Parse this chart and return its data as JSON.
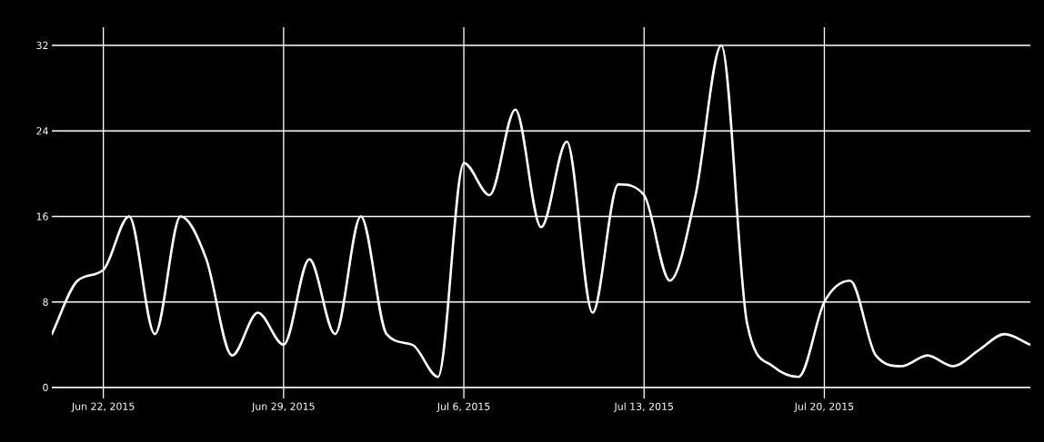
{
  "chart_data": {
    "type": "line",
    "x": [
      "2015-06-20",
      "2015-06-21",
      "2015-06-22",
      "2015-06-23",
      "2015-06-24",
      "2015-06-25",
      "2015-06-26",
      "2015-06-27",
      "2015-06-28",
      "2015-06-29",
      "2015-06-30",
      "2015-07-01",
      "2015-07-02",
      "2015-07-03",
      "2015-07-04",
      "2015-07-05",
      "2015-07-06",
      "2015-07-07",
      "2015-07-08",
      "2015-07-09",
      "2015-07-10",
      "2015-07-11",
      "2015-07-12",
      "2015-07-13",
      "2015-07-14",
      "2015-07-15",
      "2015-07-16",
      "2015-07-17",
      "2015-07-18",
      "2015-07-19",
      "2015-07-20",
      "2015-07-21",
      "2015-07-22",
      "2015-07-23",
      "2015-07-24",
      "2015-07-25",
      "2015-07-26",
      "2015-07-27",
      "2015-07-28"
    ],
    "series": [
      {
        "color": "#ffffff",
        "values": [
          5,
          10,
          11,
          16,
          5,
          16,
          12,
          3,
          7,
          4,
          12,
          5,
          16,
          5,
          4,
          1,
          21,
          18,
          26,
          15,
          23,
          7,
          19,
          18,
          10,
          18,
          32,
          6,
          2,
          1,
          8,
          10,
          3,
          2,
          3,
          2,
          3.5,
          5,
          4
        ]
      }
    ],
    "xlim": [
      "2015-06-20",
      "2015-07-28"
    ],
    "xticks": [
      {
        "value": "2015-06-22",
        "label": "Jun 22, 2015"
      },
      {
        "value": "2015-06-29",
        "label": "Jun 29, 2015"
      },
      {
        "value": "2015-07-06",
        "label": "Jul 6, 2015"
      },
      {
        "value": "2015-07-13",
        "label": "Jul 13, 2015"
      },
      {
        "value": "2015-07-20",
        "label": "Jul 20, 2015"
      }
    ],
    "ylim": [
      0,
      33.7
    ],
    "yticks": [
      0,
      8,
      16,
      24,
      32
    ],
    "grid": true,
    "line_style": "solid"
  }
}
